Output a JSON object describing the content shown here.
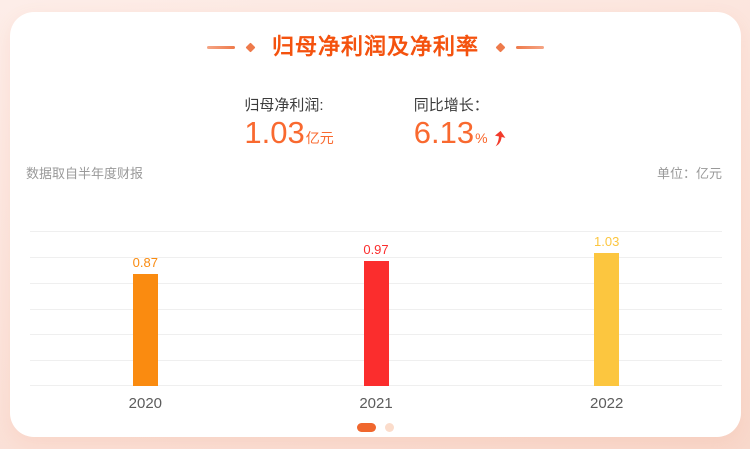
{
  "theme": {
    "page-bg-start": "#FDEDE8",
    "page-bg-mid": "#FBE2D9",
    "page-bg-end": "#F8D8CB",
    "card-bg": "#FFFFFF",
    "accent": "#F4520E",
    "decor": "#EE7A4B",
    "decor-light": "#F5A585",
    "number-color": "#F9692F",
    "arrow-color": "#F23B2B",
    "label-color": "#3C3C3C",
    "muted": "#999999",
    "grid-color": "#EFEFEF",
    "axis-label-color": "#5C5C5C",
    "dot-active": "#F0672E",
    "dot-inactive": "#FBDCCB"
  },
  "header": {
    "title": "归母净利润及净利率"
  },
  "stats": [
    {
      "label": "归母净利润:",
      "value": "1.03",
      "unit": "亿元"
    },
    {
      "label": "同比增长：",
      "value": "6.13",
      "unit": "%",
      "arrow": "up"
    }
  ],
  "meta": {
    "source_note": "数据取自半年度财报",
    "unit_note": "单位：亿元"
  },
  "chart_data": {
    "type": "bar",
    "title": "归母净利润及净利率",
    "categories": [
      "2020",
      "2021",
      "2022"
    ],
    "values": [
      0.87,
      0.97,
      1.03
    ],
    "value_labels": [
      "0.87",
      "0.97",
      "1.03"
    ],
    "bar_colors": [
      "#FA8B10",
      "#FB2D2D",
      "#FCC63F"
    ],
    "xlabel": "",
    "ylabel": "亿元",
    "ylim": [
      0,
      1.2
    ],
    "grid": true,
    "grid_step": 0.2,
    "legend": false
  },
  "pagination": {
    "dots": [
      {
        "active": true
      },
      {
        "active": false
      }
    ]
  }
}
